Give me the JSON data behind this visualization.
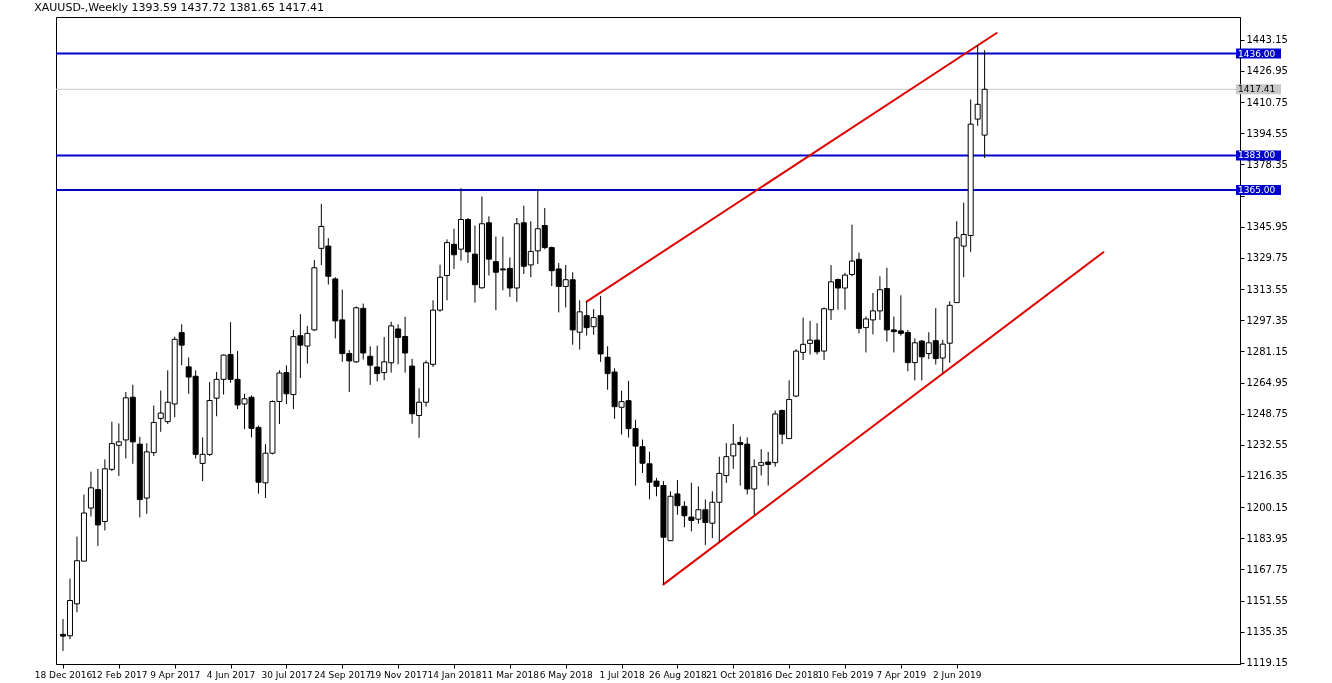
{
  "chart_data": {
    "type": "candlestick",
    "title": "XAUUSD-,Weekly 1393.59 1437.72 1381.65 1417.41",
    "x": [
      "2016-12-18",
      "2016-12-25",
      "2017-01-01",
      "2017-01-08",
      "2017-01-15",
      "2017-01-22",
      "2017-01-29",
      "2017-02-05",
      "2017-02-12",
      "2017-02-19",
      "2017-02-26",
      "2017-03-05",
      "2017-03-12",
      "2017-03-19",
      "2017-03-26",
      "2017-04-02",
      "2017-04-09",
      "2017-04-16",
      "2017-04-23",
      "2017-04-30",
      "2017-05-07",
      "2017-05-14",
      "2017-05-21",
      "2017-05-28",
      "2017-06-04",
      "2017-06-11",
      "2017-06-18",
      "2017-06-25",
      "2017-07-02",
      "2017-07-09",
      "2017-07-16",
      "2017-07-23",
      "2017-07-30",
      "2017-08-06",
      "2017-08-13",
      "2017-08-20",
      "2017-08-27",
      "2017-09-03",
      "2017-09-10",
      "2017-09-17",
      "2017-09-24",
      "2017-10-01",
      "2017-10-08",
      "2017-10-15",
      "2017-10-22",
      "2017-10-29",
      "2017-11-05",
      "2017-11-12",
      "2017-11-19",
      "2017-11-26",
      "2017-12-03",
      "2017-12-10",
      "2017-12-17",
      "2017-12-24",
      "2017-12-31",
      "2018-01-07",
      "2018-01-14",
      "2018-01-21",
      "2018-01-28",
      "2018-02-04",
      "2018-02-11",
      "2018-02-18",
      "2018-02-25",
      "2018-03-04",
      "2018-03-11",
      "2018-03-18",
      "2018-03-25",
      "2018-04-01",
      "2018-04-08",
      "2018-04-15",
      "2018-04-22",
      "2018-04-29",
      "2018-05-06",
      "2018-05-13",
      "2018-05-20",
      "2018-05-27",
      "2018-06-03",
      "2018-06-10",
      "2018-06-17",
      "2018-06-24",
      "2018-07-01",
      "2018-07-08",
      "2018-07-15",
      "2018-07-22",
      "2018-07-29",
      "2018-08-05",
      "2018-08-12",
      "2018-08-19",
      "2018-08-26",
      "2018-09-02",
      "2018-09-09",
      "2018-09-16",
      "2018-09-23",
      "2018-09-30",
      "2018-10-07",
      "2018-10-14",
      "2018-10-21",
      "2018-10-28",
      "2018-11-04",
      "2018-11-11",
      "2018-11-18",
      "2018-11-25",
      "2018-12-02",
      "2018-12-09",
      "2018-12-16",
      "2018-12-23",
      "2018-12-30",
      "2019-01-06",
      "2019-01-13",
      "2019-01-20",
      "2019-01-27",
      "2019-02-03",
      "2019-02-10",
      "2019-02-17",
      "2019-02-24",
      "2019-03-03",
      "2019-03-10",
      "2019-03-17",
      "2019-03-24",
      "2019-03-31",
      "2019-04-07",
      "2019-04-14",
      "2019-04-21",
      "2019-04-28",
      "2019-05-05",
      "2019-05-12",
      "2019-05-19",
      "2019-05-26",
      "2019-06-02",
      "2019-06-09",
      "2019-06-16",
      "2019-06-23",
      "2019-06-30"
    ],
    "ohlc": [
      [
        1134,
        1142,
        1125.4,
        1133.1
      ],
      [
        1133.3,
        1163,
        1131.5,
        1151.6
      ],
      [
        1149.9,
        1184.8,
        1145.5,
        1172.3
      ],
      [
        1172.1,
        1206.7,
        1172,
        1197.1
      ],
      [
        1199.7,
        1218.6,
        1195.3,
        1210.2
      ],
      [
        1209.3,
        1220.1,
        1180,
        1190.9
      ],
      [
        1192.7,
        1225,
        1188,
        1220.1
      ],
      [
        1219.8,
        1244.6,
        1218.9,
        1233.2
      ],
      [
        1232.3,
        1243.7,
        1216.3,
        1234.1
      ],
      [
        1235.1,
        1260,
        1225.5,
        1257
      ],
      [
        1257.3,
        1263.8,
        1222.7,
        1234.1
      ],
      [
        1232.9,
        1236.7,
        1194.8,
        1204.1
      ],
      [
        1204.9,
        1233.4,
        1196.7,
        1228.9
      ],
      [
        1228.5,
        1253,
        1226.8,
        1244.2
      ],
      [
        1246.3,
        1260.8,
        1239.3,
        1249.1
      ],
      [
        1244.6,
        1271.3,
        1243.4,
        1254.7
      ],
      [
        1253.8,
        1288.8,
        1246.9,
        1287.4
      ],
      [
        1290.9,
        1295.2,
        1273.9,
        1284.4
      ],
      [
        1273.1,
        1278,
        1259.1,
        1267.8
      ],
      [
        1268.2,
        1271.3,
        1225.4,
        1227.6
      ],
      [
        1222.9,
        1236.4,
        1213.7,
        1227.6
      ],
      [
        1227.6,
        1265.2,
        1226.8,
        1255.6
      ],
      [
        1256.8,
        1270.4,
        1247.4,
        1266.6
      ],
      [
        1266.6,
        1279.5,
        1258.7,
        1279.2
      ],
      [
        1279.5,
        1296.3,
        1264.8,
        1266.6
      ],
      [
        1266.6,
        1281.3,
        1251.2,
        1253.3
      ],
      [
        1253.8,
        1259.1,
        1240.7,
        1256.5
      ],
      [
        1257.3,
        1258.2,
        1236.4,
        1241.1
      ],
      [
        1241.6,
        1242.5,
        1207.2,
        1213.1
      ],
      [
        1212.8,
        1232.9,
        1204.9,
        1228.2
      ],
      [
        1228.2,
        1255.6,
        1227.6,
        1255.1
      ],
      [
        1255.1,
        1271.3,
        1243.4,
        1269.9
      ],
      [
        1270.1,
        1273.9,
        1253.8,
        1259.1
      ],
      [
        1258.7,
        1292.3,
        1251.2,
        1288.8
      ],
      [
        1289.3,
        1300.5,
        1267.3,
        1284.4
      ],
      [
        1283.9,
        1294.4,
        1274.8,
        1290.5
      ],
      [
        1292.3,
        1328.6,
        1291.8,
        1324.6
      ],
      [
        1334.7,
        1357.8,
        1326,
        1346.1
      ],
      [
        1335.9,
        1340,
        1315.9,
        1320.2
      ],
      [
        1318.8,
        1319.7,
        1287.9,
        1297
      ],
      [
        1297.5,
        1313.2,
        1275.7,
        1280
      ],
      [
        1280,
        1281.8,
        1260,
        1276.2
      ],
      [
        1275.7,
        1304.5,
        1275.2,
        1303.8
      ],
      [
        1303.5,
        1306,
        1276.9,
        1280.3
      ],
      [
        1278.6,
        1283.8,
        1263.7,
        1274
      ],
      [
        1273,
        1284.1,
        1265.5,
        1269.6
      ],
      [
        1270.1,
        1288.6,
        1266.1,
        1275.7
      ],
      [
        1275.2,
        1296.6,
        1270.1,
        1294.4
      ],
      [
        1292.8,
        1295.2,
        1274.4,
        1288.4
      ],
      [
        1288.9,
        1299.2,
        1270.1,
        1280.3
      ],
      [
        1273.5,
        1277.3,
        1243.5,
        1248.7
      ],
      [
        1247.8,
        1262,
        1236.2,
        1254.7
      ],
      [
        1254.7,
        1276.4,
        1252.4,
        1275.2
      ],
      [
        1274.4,
        1307.7,
        1273,
        1302.6
      ],
      [
        1302.6,
        1326.2,
        1301.8,
        1319.7
      ],
      [
        1320.6,
        1339.4,
        1307.7,
        1337.7
      ],
      [
        1336.8,
        1344.9,
        1324,
        1331.4
      ],
      [
        1334.3,
        1366,
        1328.3,
        1349.7
      ],
      [
        1349.7,
        1350.5,
        1327.1,
        1332.9
      ],
      [
        1331.7,
        1346.6,
        1306.5,
        1315.8
      ],
      [
        1314.2,
        1361.7,
        1313.7,
        1347.5
      ],
      [
        1348,
        1351.4,
        1320.6,
        1329.1
      ],
      [
        1327.8,
        1340.8,
        1302.6,
        1322.3
      ],
      [
        1324,
        1340.8,
        1312.9,
        1323.5
      ],
      [
        1324.3,
        1330,
        1309.5,
        1314.1
      ],
      [
        1314.1,
        1350.5,
        1306.9,
        1347.5
      ],
      [
        1348,
        1356.9,
        1321.4,
        1325.4
      ],
      [
        1326.1,
        1348.8,
        1319.7,
        1333.1
      ],
      [
        1333.4,
        1365.4,
        1326.6,
        1344.9
      ],
      [
        1346.6,
        1355.7,
        1334.3,
        1335.1
      ],
      [
        1335.1,
        1335.6,
        1315.1,
        1323.1
      ],
      [
        1324,
        1327.1,
        1301.4,
        1314.9
      ],
      [
        1314.9,
        1326.1,
        1304,
        1318.4
      ],
      [
        1318.4,
        1322.3,
        1284.6,
        1292.3
      ],
      [
        1291.1,
        1307.7,
        1282.1,
        1301.7
      ],
      [
        1299.7,
        1306.9,
        1289.4,
        1293.5
      ],
      [
        1294,
        1303.1,
        1289.8,
        1298.7
      ],
      [
        1299.7,
        1310,
        1275.7,
        1279.8
      ],
      [
        1278.1,
        1283.8,
        1261.2,
        1269.6
      ],
      [
        1270.4,
        1272.3,
        1246.1,
        1252.4
      ],
      [
        1252.1,
        1260.7,
        1237.9,
        1255
      ],
      [
        1255.5,
        1265.8,
        1236.3,
        1241
      ],
      [
        1241,
        1245.6,
        1211.4,
        1231.9
      ],
      [
        1231.6,
        1235.3,
        1217.9,
        1223
      ],
      [
        1222.7,
        1229,
        1204.2,
        1213.1
      ],
      [
        1213.7,
        1215.4,
        1205.8,
        1211
      ],
      [
        1211.4,
        1213.7,
        1160,
        1184.5
      ],
      [
        1182.7,
        1208.4,
        1182.7,
        1205.8
      ],
      [
        1207,
        1214.2,
        1196.2,
        1200.9
      ],
      [
        1200.6,
        1203.2,
        1189.7,
        1195.7
      ],
      [
        1195,
        1212.8,
        1187.5,
        1193.2
      ],
      [
        1193.9,
        1211,
        1191.5,
        1198.8
      ],
      [
        1198.8,
        1204.1,
        1180.5,
        1192.2
      ],
      [
        1191.8,
        1208.4,
        1184,
        1202.7
      ],
      [
        1202.7,
        1226.4,
        1182.2,
        1217.7
      ],
      [
        1216.6,
        1233.4,
        1212.8,
        1226.4
      ],
      [
        1226.8,
        1243.4,
        1220.1,
        1232.9
      ],
      [
        1233.8,
        1236.9,
        1211.4,
        1232.7
      ],
      [
        1232.9,
        1236.4,
        1206.7,
        1209.6
      ],
      [
        1209.6,
        1225,
        1196.2,
        1221.2
      ],
      [
        1221.9,
        1230.3,
        1216.6,
        1223.3
      ],
      [
        1223.6,
        1228.9,
        1211.4,
        1222.4
      ],
      [
        1223.3,
        1250.4,
        1221.2,
        1248.6
      ],
      [
        1250.4,
        1250.9,
        1232.9,
        1238.1
      ],
      [
        1235.8,
        1266.1,
        1235.8,
        1256.1
      ],
      [
        1257.9,
        1282.3,
        1257.3,
        1281.3
      ],
      [
        1280.6,
        1298.7,
        1276.6,
        1284.8
      ],
      [
        1285.3,
        1297,
        1279.5,
        1287
      ],
      [
        1287,
        1295.8,
        1279.5,
        1280.9
      ],
      [
        1281.3,
        1304,
        1276.6,
        1303.3
      ],
      [
        1302.8,
        1326,
        1297.5,
        1317.3
      ],
      [
        1318.5,
        1319,
        1302.8,
        1314.1
      ],
      [
        1314.1,
        1322,
        1302.8,
        1320.8
      ],
      [
        1321.1,
        1347,
        1320.2,
        1328.1
      ],
      [
        1329,
        1332.5,
        1290.5,
        1293.1
      ],
      [
        1293.5,
        1299.3,
        1280.6,
        1298
      ],
      [
        1297.5,
        1311.5,
        1290,
        1302.2
      ],
      [
        1302.2,
        1320.2,
        1297.5,
        1313.2
      ],
      [
        1313.8,
        1324.6,
        1286.2,
        1292.3
      ],
      [
        1292.3,
        1299.3,
        1280.6,
        1291.4
      ],
      [
        1291.8,
        1310.3,
        1289.3,
        1290.5
      ],
      [
        1291,
        1292.3,
        1270.8,
        1275.3
      ],
      [
        1275.3,
        1287.9,
        1266.1,
        1285.6
      ],
      [
        1286.5,
        1287,
        1266.1,
        1278.3
      ],
      [
        1280,
        1291.1,
        1277.1,
        1285.6
      ],
      [
        1286.7,
        1303.6,
        1274.3,
        1277.4
      ],
      [
        1277.7,
        1287.2,
        1270,
        1284.9
      ],
      [
        1285.4,
        1307.2,
        1275.2,
        1305.1
      ],
      [
        1306.5,
        1348.8,
        1306.5,
        1340.2
      ],
      [
        1335.9,
        1358.5,
        1319.7,
        1341.9
      ],
      [
        1341.4,
        1412.1,
        1332.9,
        1399.3
      ],
      [
        1401.9,
        1440.4,
        1398.4,
        1409.6
      ],
      [
        1393.59,
        1437.72,
        1381.65,
        1417.41
      ]
    ],
    "series": [
      {
        "type": "line",
        "color": "#e00000",
        "x": [
          "2018-05-27",
          "2019-07-12"
        ],
        "values": [
          1307,
          1446.7
        ]
      },
      {
        "type": "line",
        "color": "#e00000",
        "x": [
          "2018-08-12",
          "2019-10-27"
        ],
        "values": [
          1160,
          1332.7
        ]
      }
    ],
    "xlim": [
      "2016-12-16",
      "2020-03-07"
    ],
    "xticks": [
      {
        "value": "2016-12-18",
        "label": "18 Dec 2016"
      },
      {
        "value": "2017-02-12",
        "label": "12 Feb 2017"
      },
      {
        "value": "2017-04-09",
        "label": "9 Apr 2017"
      },
      {
        "value": "2017-06-04",
        "label": "4 Jun 2017"
      },
      {
        "value": "2017-07-30",
        "label": "30 Jul 2017"
      },
      {
        "value": "2017-09-24",
        "label": "24 Sep 2017"
      },
      {
        "value": "2017-11-19",
        "label": "19 Nov 2017"
      },
      {
        "value": "2018-01-14",
        "label": "14 Jan 2018"
      },
      {
        "value": "2018-03-11",
        "label": "11 Mar 2018"
      },
      {
        "value": "2018-05-06",
        "label": "6 May 2018"
      },
      {
        "value": "2018-07-01",
        "label": "1 Jul 2018"
      },
      {
        "value": "2018-08-26",
        "label": "26 Aug 2018"
      },
      {
        "value": "2018-10-21",
        "label": "21 Oct 2018"
      },
      {
        "value": "2018-12-16",
        "label": "16 Dec 2018"
      },
      {
        "value": "2019-02-10",
        "label": "10 Feb 2019"
      },
      {
        "value": "2019-04-07",
        "label": "7 Apr 2019"
      },
      {
        "value": "2019-06-02",
        "label": "2 Jun 2019"
      }
    ],
    "ylim": [
      1118.6,
      1455
    ],
    "yticks": [
      1119.15,
      1135.35,
      1151.55,
      1167.75,
      1183.95,
      1200.15,
      1216.35,
      1232.55,
      1248.75,
      1264.95,
      1281.15,
      1297.35,
      1313.55,
      1329.75,
      1345.95,
      {
        "value": 1362.15,
        "label": null
      },
      1378.35,
      1394.55,
      1410.75,
      1426.95,
      1443.15
    ],
    "ref_lines": [
      {
        "axis": "y",
        "value": 1417.41,
        "label": "1417.41",
        "color": "#c8c8c8"
      },
      {
        "axis": "y",
        "value": 1436,
        "label": "1436.00",
        "color": "#0000cc"
      },
      {
        "axis": "y",
        "value": 1383,
        "label": "1383.00",
        "color": "#0000cc"
      },
      {
        "axis": "y",
        "value": 1365,
        "label": "1365.00",
        "color": "#0000cc"
      }
    ],
    "grid": false
  }
}
